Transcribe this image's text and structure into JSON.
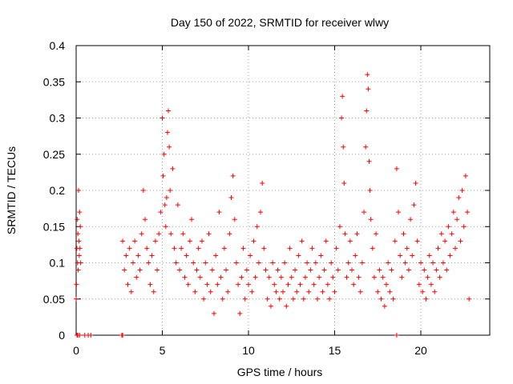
{
  "chart_data": {
    "type": "scatter",
    "title": "Day 150 of 2022, SRMTID for receiver wlwy",
    "xlabel": "GPS time / hours",
    "ylabel": "SRMTID / TECUs",
    "xlim": [
      0,
      24
    ],
    "ylim": [
      0,
      0.4
    ],
    "xticks": [
      0,
      5,
      10,
      15,
      20
    ],
    "yticks": [
      0,
      0.05,
      0.1,
      0.15,
      0.2,
      0.25,
      0.3,
      0.35,
      0.4
    ],
    "xtick_labels": [
      "0",
      "5",
      "10",
      "15",
      "20"
    ],
    "ytick_labels": [
      "0",
      "0.05",
      "0.1",
      "0.15",
      "0.2",
      "0.25",
      "0.3",
      "0.35",
      "0.4"
    ],
    "grid": true,
    "marker": "+",
    "color": "#ff0000",
    "series": [
      {
        "name": "SRMTID",
        "points": [
          [
            0.0,
            0.05
          ],
          [
            0.02,
            0.07
          ],
          [
            0.04,
            0.12
          ],
          [
            0.06,
            0.16
          ],
          [
            0.08,
            0.1
          ],
          [
            0.1,
            0.14
          ],
          [
            0.12,
            0.09
          ],
          [
            0.14,
            0.2
          ],
          [
            0.16,
            0.13
          ],
          [
            0.18,
            0.11
          ],
          [
            0.2,
            0.17
          ],
          [
            0.22,
            0.12
          ],
          [
            0.24,
            0.15
          ],
          [
            0.26,
            0.1
          ],
          [
            0.05,
            0.0
          ],
          [
            0.1,
            0.0
          ],
          [
            0.2,
            0.0
          ],
          [
            0.5,
            0.0
          ],
          [
            0.7,
            0.0
          ],
          [
            0.85,
            0.0
          ],
          [
            2.65,
            0.0
          ],
          [
            2.7,
            0.0
          ],
          [
            2.7,
            0.13
          ],
          [
            2.8,
            0.09
          ],
          [
            2.9,
            0.11
          ],
          [
            3.0,
            0.07
          ],
          [
            3.1,
            0.12
          ],
          [
            3.2,
            0.06
          ],
          [
            3.3,
            0.1
          ],
          [
            3.4,
            0.13
          ],
          [
            3.5,
            0.08
          ],
          [
            3.6,
            0.11
          ],
          [
            3.7,
            0.09
          ],
          [
            3.8,
            0.14
          ],
          [
            3.9,
            0.2
          ],
          [
            4.0,
            0.16
          ],
          [
            4.1,
            0.12
          ],
          [
            4.2,
            0.1
          ],
          [
            4.3,
            0.07
          ],
          [
            4.4,
            0.11
          ],
          [
            4.5,
            0.06
          ],
          [
            4.6,
            0.13
          ],
          [
            4.7,
            0.09
          ],
          [
            4.8,
            0.14
          ],
          [
            4.9,
            0.17
          ],
          [
            5.0,
            0.3
          ],
          [
            5.05,
            0.22
          ],
          [
            5.1,
            0.25
          ],
          [
            5.15,
            0.18
          ],
          [
            5.2,
            0.15
          ],
          [
            5.25,
            0.19
          ],
          [
            5.3,
            0.28
          ],
          [
            5.35,
            0.31
          ],
          [
            5.4,
            0.26
          ],
          [
            5.45,
            0.2
          ],
          [
            5.5,
            0.14
          ],
          [
            5.6,
            0.23
          ],
          [
            5.7,
            0.12
          ],
          [
            5.8,
            0.1
          ],
          [
            5.9,
            0.18
          ],
          [
            6.0,
            0.09
          ],
          [
            6.1,
            0.12
          ],
          [
            6.2,
            0.14
          ],
          [
            6.3,
            0.08
          ],
          [
            6.4,
            0.11
          ],
          [
            6.5,
            0.07
          ],
          [
            6.6,
            0.13
          ],
          [
            6.7,
            0.16
          ],
          [
            6.8,
            0.1
          ],
          [
            6.9,
            0.06
          ],
          [
            7.0,
            0.09
          ],
          [
            7.1,
            0.12
          ],
          [
            7.2,
            0.08
          ],
          [
            7.3,
            0.13
          ],
          [
            7.4,
            0.05
          ],
          [
            7.5,
            0.1
          ],
          [
            7.6,
            0.07
          ],
          [
            7.7,
            0.14
          ],
          [
            7.8,
            0.06
          ],
          [
            7.9,
            0.09
          ],
          [
            8.0,
            0.03
          ],
          [
            8.1,
            0.11
          ],
          [
            8.2,
            0.07
          ],
          [
            8.3,
            0.17
          ],
          [
            8.4,
            0.08
          ],
          [
            8.5,
            0.05
          ],
          [
            8.6,
            0.12
          ],
          [
            8.7,
            0.09
          ],
          [
            8.8,
            0.06
          ],
          [
            8.9,
            0.14
          ],
          [
            9.0,
            0.19
          ],
          [
            9.1,
            0.22
          ],
          [
            9.2,
            0.16
          ],
          [
            9.3,
            0.1
          ],
          [
            9.4,
            0.07
          ],
          [
            9.5,
            0.03
          ],
          [
            9.6,
            0.08
          ],
          [
            9.7,
            0.12
          ],
          [
            9.8,
            0.05
          ],
          [
            9.9,
            0.09
          ],
          [
            10.0,
            0.07
          ],
          [
            10.1,
            0.11
          ],
          [
            10.2,
            0.06
          ],
          [
            10.3,
            0.13
          ],
          [
            10.4,
            0.08
          ],
          [
            10.5,
            0.15
          ],
          [
            10.6,
            0.1
          ],
          [
            10.7,
            0.17
          ],
          [
            10.8,
            0.21
          ],
          [
            10.9,
            0.12
          ],
          [
            11.0,
            0.09
          ],
          [
            11.1,
            0.05
          ],
          [
            11.2,
            0.08
          ],
          [
            11.3,
            0.04
          ],
          [
            11.4,
            0.1
          ],
          [
            11.5,
            0.07
          ],
          [
            11.6,
            0.06
          ],
          [
            11.7,
            0.09
          ],
          [
            11.8,
            0.05
          ],
          [
            11.9,
            0.08
          ],
          [
            12.0,
            0.06
          ],
          [
            12.1,
            0.1
          ],
          [
            12.2,
            0.04
          ],
          [
            12.3,
            0.07
          ],
          [
            12.4,
            0.12
          ],
          [
            12.5,
            0.08
          ],
          [
            12.6,
            0.05
          ],
          [
            12.7,
            0.09
          ],
          [
            12.8,
            0.06
          ],
          [
            12.9,
            0.11
          ],
          [
            13.0,
            0.07
          ],
          [
            13.1,
            0.13
          ],
          [
            13.2,
            0.05
          ],
          [
            13.3,
            0.08
          ],
          [
            13.4,
            0.1
          ],
          [
            13.5,
            0.06
          ],
          [
            13.6,
            0.09
          ],
          [
            13.7,
            0.12
          ],
          [
            13.8,
            0.07
          ],
          [
            13.9,
            0.1
          ],
          [
            14.0,
            0.05
          ],
          [
            14.1,
            0.08
          ],
          [
            14.2,
            0.11
          ],
          [
            14.3,
            0.06
          ],
          [
            14.4,
            0.09
          ],
          [
            14.5,
            0.13
          ],
          [
            14.6,
            0.07
          ],
          [
            14.7,
            0.05
          ],
          [
            14.8,
            0.1
          ],
          [
            14.9,
            0.08
          ],
          [
            15.0,
            0.06
          ],
          [
            15.1,
            0.12
          ],
          [
            15.2,
            0.09
          ],
          [
            15.3,
            0.15
          ],
          [
            15.4,
            0.3
          ],
          [
            15.45,
            0.33
          ],
          [
            15.5,
            0.26
          ],
          [
            15.55,
            0.21
          ],
          [
            15.6,
            0.14
          ],
          [
            15.7,
            0.08
          ],
          [
            15.8,
            0.1
          ],
          [
            15.9,
            0.13
          ],
          [
            16.0,
            0.09
          ],
          [
            16.1,
            0.07
          ],
          [
            16.2,
            0.11
          ],
          [
            16.3,
            0.14
          ],
          [
            16.4,
            0.08
          ],
          [
            16.5,
            0.06
          ],
          [
            16.6,
            0.1
          ],
          [
            16.7,
            0.17
          ],
          [
            16.8,
            0.26
          ],
          [
            16.85,
            0.31
          ],
          [
            16.9,
            0.36
          ],
          [
            16.95,
            0.34
          ],
          [
            17.0,
            0.24
          ],
          [
            17.05,
            0.2
          ],
          [
            17.1,
            0.16
          ],
          [
            17.2,
            0.12
          ],
          [
            17.3,
            0.08
          ],
          [
            17.4,
            0.14
          ],
          [
            17.5,
            0.06
          ],
          [
            17.6,
            0.09
          ],
          [
            17.7,
            0.05
          ],
          [
            17.8,
            0.08
          ],
          [
            17.9,
            0.04
          ],
          [
            18.0,
            0.07
          ],
          [
            18.1,
            0.1
          ],
          [
            18.2,
            0.06
          ],
          [
            18.3,
            0.09
          ],
          [
            18.4,
            0.05
          ],
          [
            18.5,
            0.13
          ],
          [
            18.6,
            0.23
          ],
          [
            18.7,
            0.17
          ],
          [
            18.8,
            0.11
          ],
          [
            18.9,
            0.08
          ],
          [
            19.0,
            0.14
          ],
          [
            19.1,
            0.1
          ],
          [
            19.2,
            0.12
          ],
          [
            19.3,
            0.09
          ],
          [
            19.4,
            0.16
          ],
          [
            19.5,
            0.11
          ],
          [
            19.6,
            0.18
          ],
          [
            19.7,
            0.21
          ],
          [
            19.8,
            0.13
          ],
          [
            19.9,
            0.07
          ],
          [
            20.0,
            0.1
          ],
          [
            20.1,
            0.06
          ],
          [
            20.2,
            0.09
          ],
          [
            20.3,
            0.05
          ],
          [
            20.4,
            0.08
          ],
          [
            20.5,
            0.11
          ],
          [
            20.6,
            0.07
          ],
          [
            20.7,
            0.1
          ],
          [
            20.8,
            0.06
          ],
          [
            20.9,
            0.09
          ],
          [
            21.0,
            0.12
          ],
          [
            21.1,
            0.08
          ],
          [
            21.2,
            0.14
          ],
          [
            21.3,
            0.1
          ],
          [
            21.4,
            0.13
          ],
          [
            21.5,
            0.09
          ],
          [
            21.6,
            0.15
          ],
          [
            21.7,
            0.11
          ],
          [
            21.8,
            0.14
          ],
          [
            21.9,
            0.17
          ],
          [
            22.0,
            0.12
          ],
          [
            22.1,
            0.16
          ],
          [
            22.2,
            0.19
          ],
          [
            22.3,
            0.13
          ],
          [
            22.4,
            0.2
          ],
          [
            22.5,
            0.15
          ],
          [
            22.6,
            0.22
          ],
          [
            22.7,
            0.17
          ],
          [
            22.8,
            0.05
          ],
          [
            18.6,
            0.0
          ]
        ]
      }
    ]
  }
}
